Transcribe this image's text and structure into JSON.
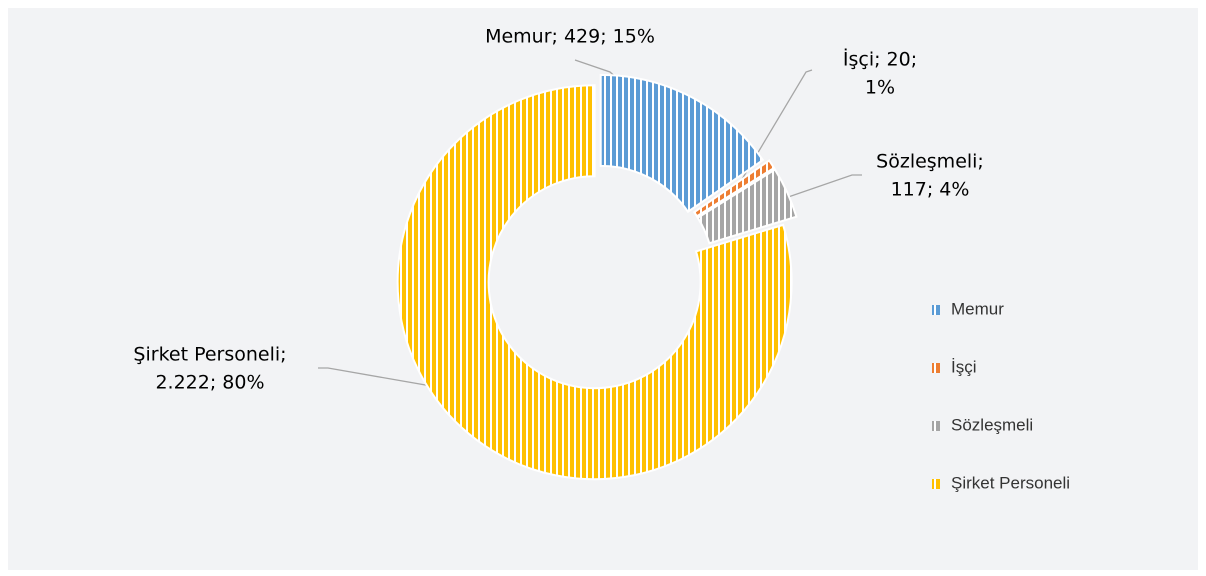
{
  "chart_data": {
    "type": "donut",
    "categories": [
      "Memur",
      "İşçi",
      "Sözleşmeli",
      "Şirket Personeli"
    ],
    "values": [
      429,
      20,
      117,
      2222
    ],
    "value_labels": [
      [
        "Memur; 429; 15%"
      ],
      [
        "İşçi; 20;",
        "1%"
      ],
      [
        "Sözleşmeli;",
        "117; 4%"
      ],
      [
        "Şirket Personeli;",
        "2.222; 80%"
      ]
    ],
    "colors": [
      "#5b9bd5",
      "#ed7d31",
      "#a5a5a5",
      "#ffc000"
    ],
    "legend": "right"
  }
}
